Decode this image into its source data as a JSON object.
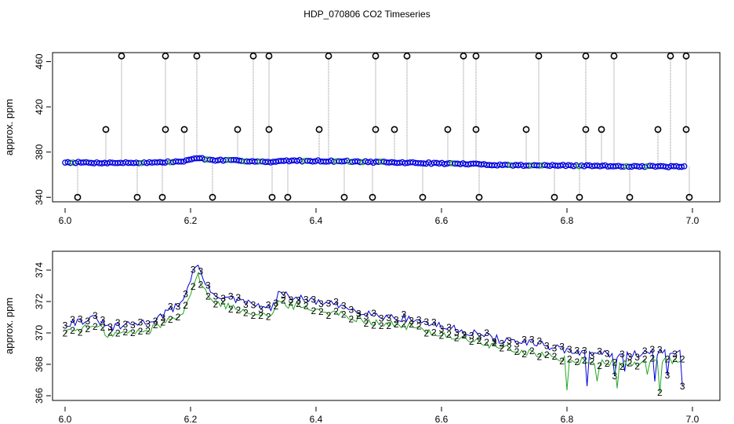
{
  "title": "HDP_070806  CO2 Timeseries",
  "colors": {
    "series1": "#0000dd",
    "series2": "#22aa22",
    "outlier": "#000000",
    "highlight": "#00cccc",
    "vline": "#888888"
  },
  "chart_data": [
    {
      "type": "scatter",
      "ylabel": "approx. ppm",
      "xlim": [
        6.0,
        7.0
      ],
      "ylim": [
        336,
        468
      ],
      "xticks": [
        "6.0",
        "6.2",
        "6.4",
        "6.6",
        "6.8",
        "7.0"
      ],
      "yticks": [
        "340",
        "380",
        "420",
        "460"
      ],
      "baseline": [
        [
          6.0,
          371
        ],
        [
          6.05,
          370.5
        ],
        [
          6.1,
          370.5
        ],
        [
          6.15,
          370.8
        ],
        [
          6.19,
          371.8
        ],
        [
          6.21,
          375
        ],
        [
          6.23,
          373
        ],
        [
          6.3,
          372
        ],
        [
          6.33,
          370.8
        ],
        [
          6.35,
          372.5
        ],
        [
          6.45,
          371.8
        ],
        [
          6.5,
          371
        ],
        [
          6.6,
          370
        ],
        [
          6.66,
          369.2
        ],
        [
          6.7,
          368.5
        ],
        [
          6.8,
          368
        ],
        [
          6.9,
          367.5
        ],
        [
          6.99,
          367
        ]
      ],
      "outliers_high": [
        6.09,
        6.16,
        6.21,
        6.3,
        6.325,
        6.42,
        6.495,
        6.545,
        6.635,
        6.655,
        6.755,
        6.83,
        6.875,
        6.965,
        6.99
      ],
      "outliers_mid": [
        6.065,
        6.16,
        6.19,
        6.275,
        6.325,
        6.405,
        6.495,
        6.525,
        6.61,
        6.655,
        6.735,
        6.83,
        6.855,
        6.945,
        6.99
      ],
      "outliers_low": [
        6.02,
        6.115,
        6.155,
        6.235,
        6.33,
        6.355,
        6.445,
        6.49,
        6.57,
        6.66,
        6.78,
        6.82,
        6.9,
        6.995
      ],
      "levels": {
        "high": 465,
        "mid": 400,
        "low": 340
      }
    },
    {
      "type": "line",
      "ylabel": "approx. ppm",
      "xlim": [
        6.0,
        7.0
      ],
      "ylim": [
        365.7,
        375.2
      ],
      "xticks": [
        "6.0",
        "6.2",
        "6.4",
        "6.6",
        "6.8",
        "7.0"
      ],
      "yticks": [
        "366",
        "368",
        "370",
        "372",
        "374"
      ],
      "series": [
        {
          "marker": "3",
          "values": [
            [
              6.0,
              370.6
            ],
            [
              6.03,
              370.8
            ],
            [
              6.05,
              370.9
            ],
            [
              6.07,
              370.3
            ],
            [
              6.1,
              370.5
            ],
            [
              6.13,
              370.7
            ],
            [
              6.15,
              371
            ],
            [
              6.17,
              371.5
            ],
            [
              6.19,
              372.2
            ],
            [
              6.2,
              373.5
            ],
            [
              6.21,
              374.4
            ],
            [
              6.22,
              373.5
            ],
            [
              6.23,
              372.6
            ],
            [
              6.26,
              372.2
            ],
            [
              6.3,
              371.8
            ],
            [
              6.33,
              371.5
            ],
            [
              6.34,
              372.5
            ],
            [
              6.37,
              372.2
            ],
            [
              6.4,
              372
            ],
            [
              6.45,
              371.6
            ],
            [
              6.5,
              371.1
            ],
            [
              6.55,
              370.9
            ],
            [
              6.6,
              370.4
            ],
            [
              6.65,
              370
            ],
            [
              6.7,
              369.5
            ],
            [
              6.75,
              369.3
            ],
            [
              6.8,
              368.9
            ],
            [
              6.85,
              368.7
            ],
            [
              6.9,
              368.6
            ],
            [
              6.95,
              368.8
            ],
            [
              6.99,
              368.7
            ]
          ]
        },
        {
          "marker": "2",
          "values": [
            [
              6.0,
              370.1
            ],
            [
              6.03,
              370.3
            ],
            [
              6.05,
              370.4
            ],
            [
              6.07,
              369.9
            ],
            [
              6.1,
              370
            ],
            [
              6.13,
              370.1
            ],
            [
              6.15,
              370.5
            ],
            [
              6.17,
              370.9
            ],
            [
              6.19,
              371.5
            ],
            [
              6.2,
              372.5
            ],
            [
              6.21,
              373.7
            ],
            [
              6.22,
              373
            ],
            [
              6.23,
              372.1
            ],
            [
              6.26,
              371.7
            ],
            [
              6.3,
              371.3
            ],
            [
              6.33,
              371.1
            ],
            [
              6.34,
              371.9
            ],
            [
              6.37,
              371.7
            ],
            [
              6.4,
              371.5
            ],
            [
              6.45,
              371.1
            ],
            [
              6.5,
              370.6
            ],
            [
              6.55,
              370.4
            ],
            [
              6.6,
              369.9
            ],
            [
              6.65,
              369.5
            ],
            [
              6.7,
              369
            ],
            [
              6.75,
              368.7
            ],
            [
              6.8,
              368.3
            ],
            [
              6.85,
              368.1
            ],
            [
              6.9,
              368
            ],
            [
              6.95,
              368.2
            ],
            [
              6.99,
              368.2
            ]
          ]
        }
      ]
    }
  ]
}
